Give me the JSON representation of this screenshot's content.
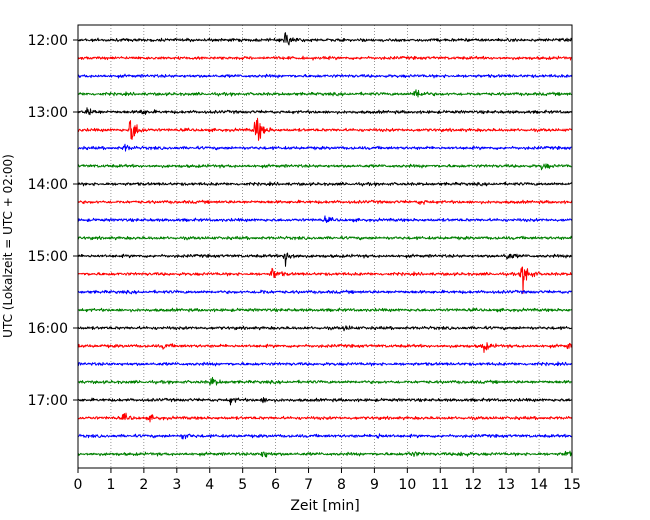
{
  "chart_data": {
    "type": "line",
    "subtype": "helicorder",
    "xlabel": "Zeit  [min]",
    "ylabel": "UTC (Lokalzeit = UTC + 02:00)",
    "xlim": [
      0,
      15
    ],
    "x_ticks": [
      "0",
      "1",
      "2",
      "3",
      "4",
      "5",
      "6",
      "7",
      "8",
      "9",
      "10",
      "11",
      "12",
      "13",
      "14",
      "15"
    ],
    "y_ticks": [
      "12:00",
      "13:00",
      "14:00",
      "15:00",
      "16:00",
      "17:00"
    ],
    "grid": "vertical dotted at every minute",
    "trace_colors": [
      "#000000",
      "#ff0000",
      "#0000ff",
      "#008000"
    ],
    "traces": [
      {
        "start": "12:00",
        "color": "#000000",
        "events": [
          [
            6.3,
            0.8
          ]
        ]
      },
      {
        "start": "12:15",
        "color": "#ff0000",
        "events": []
      },
      {
        "start": "12:30",
        "color": "#0000ff",
        "events": []
      },
      {
        "start": "12:45",
        "color": "#008000",
        "events": [
          [
            10.25,
            0.6
          ]
        ]
      },
      {
        "start": "13:00",
        "color": "#000000",
        "events": [
          [
            0.3,
            0.4
          ],
          [
            1.9,
            0.3
          ]
        ]
      },
      {
        "start": "13:15",
        "color": "#ff0000",
        "events": [
          [
            1.6,
            1.5
          ],
          [
            5.4,
            1.6
          ]
        ]
      },
      {
        "start": "13:30",
        "color": "#0000ff",
        "events": [
          [
            1.4,
            0.3
          ]
        ]
      },
      {
        "start": "13:45",
        "color": "#008000",
        "events": [
          [
            14.1,
            0.3
          ]
        ]
      },
      {
        "start": "14:00",
        "color": "#000000",
        "events": []
      },
      {
        "start": "14:15",
        "color": "#ff0000",
        "events": [
          [
            10.4,
            0.2
          ]
        ]
      },
      {
        "start": "14:30",
        "color": "#0000ff",
        "events": [
          [
            7.5,
            0.2
          ]
        ]
      },
      {
        "start": "14:45",
        "color": "#008000",
        "events": []
      },
      {
        "start": "15:00",
        "color": "#000000",
        "events": [
          [
            6.3,
            0.8
          ],
          [
            13.0,
            0.4
          ]
        ]
      },
      {
        "start": "15:15",
        "color": "#ff0000",
        "events": [
          [
            5.9,
            0.6
          ],
          [
            13.5,
            1.6
          ]
        ]
      },
      {
        "start": "15:30",
        "color": "#0000ff",
        "events": [
          [
            5.5,
            0.2
          ]
        ]
      },
      {
        "start": "15:45",
        "color": "#008000",
        "events": []
      },
      {
        "start": "16:00",
        "color": "#000000",
        "events": [
          [
            8.1,
            0.2
          ]
        ]
      },
      {
        "start": "16:15",
        "color": "#ff0000",
        "events": [
          [
            12.3,
            0.5
          ],
          [
            14.9,
            0.3
          ],
          [
            2.6,
            0.2
          ]
        ]
      },
      {
        "start": "16:30",
        "color": "#0000ff",
        "events": []
      },
      {
        "start": "16:45",
        "color": "#008000",
        "events": [
          [
            4.05,
            0.4
          ]
        ]
      },
      {
        "start": "17:00",
        "color": "#000000",
        "events": [
          [
            4.6,
            0.3
          ],
          [
            5.6,
            0.2
          ]
        ]
      },
      {
        "start": "17:15",
        "color": "#ff0000",
        "events": [
          [
            1.4,
            0.3
          ],
          [
            2.2,
            0.2
          ]
        ]
      },
      {
        "start": "17:30",
        "color": "#0000ff",
        "events": [
          [
            3.2,
            0.3
          ],
          [
            9.1,
            0.2
          ]
        ]
      },
      {
        "start": "17:45",
        "color": "#008000",
        "events": [
          [
            5.6,
            0.4
          ],
          [
            10.1,
            0.3
          ],
          [
            11.6,
            0.3
          ],
          [
            14.8,
            0.3
          ]
        ]
      }
    ]
  }
}
